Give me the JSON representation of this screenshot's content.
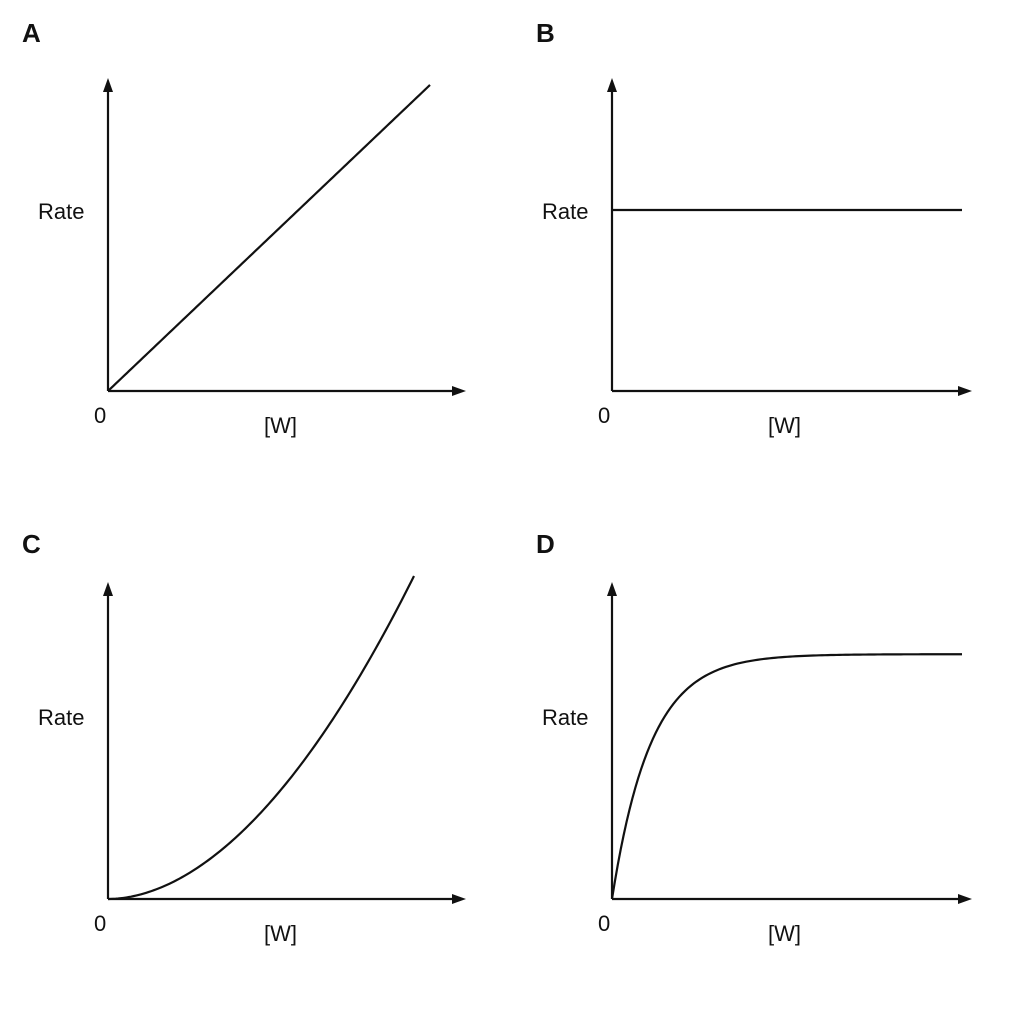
{
  "chart_data": [
    {
      "panel": "A",
      "type": "line",
      "ylabel": "Rate",
      "xlabel": "[W]",
      "origin_label": "0",
      "shape": "linear",
      "x": [
        0,
        0.25,
        0.5,
        0.75,
        1.0
      ],
      "y": [
        0,
        0.22,
        0.44,
        0.66,
        0.88
      ]
    },
    {
      "panel": "B",
      "type": "line",
      "ylabel": "Rate",
      "xlabel": "[W]",
      "origin_label": "0",
      "shape": "constant",
      "x": [
        0,
        0.25,
        0.5,
        0.75,
        1.0
      ],
      "y": [
        0.6,
        0.6,
        0.6,
        0.6,
        0.6
      ]
    },
    {
      "panel": "C",
      "type": "line",
      "ylabel": "Rate",
      "xlabel": "[W]",
      "origin_label": "0",
      "shape": "quadratic",
      "x": [
        0,
        0.25,
        0.5,
        0.75,
        1.0
      ],
      "y": [
        0,
        0.06,
        0.23,
        0.5,
        0.9
      ]
    },
    {
      "panel": "D",
      "type": "line",
      "ylabel": "Rate",
      "xlabel": "[W]",
      "origin_label": "0",
      "shape": "saturating",
      "x": [
        0,
        0.1,
        0.25,
        0.5,
        0.75,
        1.0
      ],
      "y": [
        0,
        0.45,
        0.66,
        0.71,
        0.72,
        0.72
      ]
    }
  ],
  "colors": {
    "ink": "#111111",
    "background": "#ffffff"
  }
}
